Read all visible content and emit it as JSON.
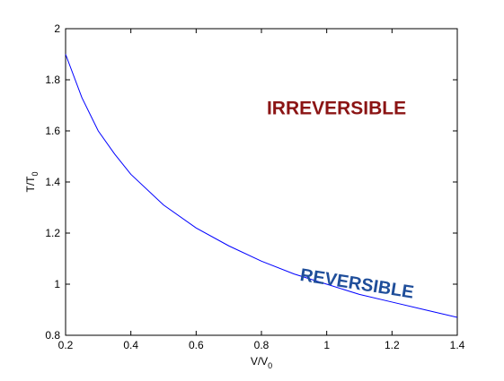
{
  "chart_data": {
    "type": "line",
    "title": "",
    "xlabel": {
      "main": "V/V",
      "sub": "0"
    },
    "ylabel": {
      "main": "T/T",
      "sub": "0"
    },
    "xlim": [
      0.2,
      1.4
    ],
    "ylim": [
      0.8,
      2.0
    ],
    "x_ticks": [
      "0.2",
      "0.4",
      "0.6",
      "0.8",
      "1",
      "1.2",
      "1.4"
    ],
    "y_ticks": [
      "0.8",
      "1",
      "1.2",
      "1.4",
      "1.6",
      "1.8",
      "2"
    ],
    "grid": false,
    "legend": "none",
    "series": [
      {
        "color": "#0000ff",
        "x": [
          0.2,
          0.25,
          0.3,
          0.35,
          0.4,
          0.5,
          0.6,
          0.7,
          0.8,
          0.9,
          1.0,
          1.1,
          1.2,
          1.3,
          1.4
        ],
        "y": [
          1.9,
          1.73,
          1.6,
          1.51,
          1.43,
          1.31,
          1.22,
          1.15,
          1.09,
          1.04,
          1.0,
          0.96,
          0.93,
          0.9,
          0.87
        ]
      }
    ],
    "annotations": [
      {
        "text": "IRREVERSIBLE",
        "x": 1.03,
        "y": 1.665,
        "color": "#8b1414",
        "rotation": 0
      },
      {
        "text": "REVERSIBLE",
        "x": 1.09,
        "y": 0.98,
        "color": "#1f4e9a",
        "rotation": 9
      }
    ]
  }
}
